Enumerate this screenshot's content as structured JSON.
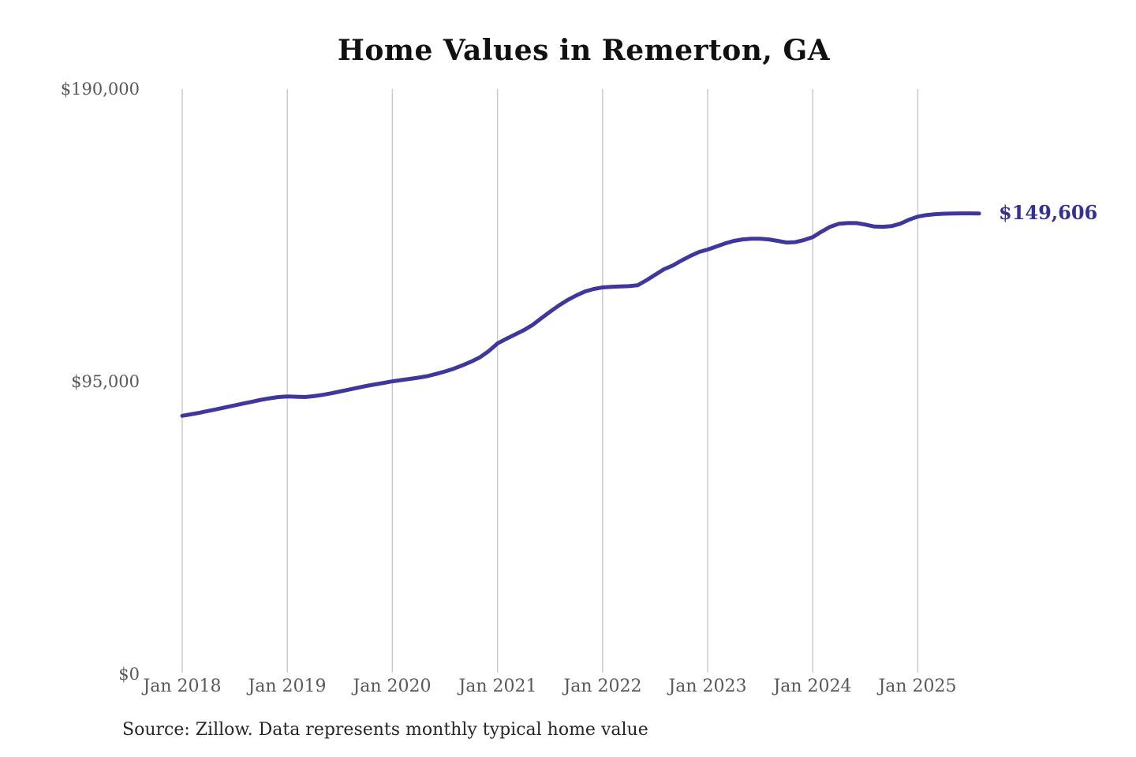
{
  "title": "Home Values in Remerton, GA",
  "source_note": "Source: Zillow. Data represents monthly typical home value",
  "end_value_label": "$149,606",
  "colors": {
    "line": "#3e389e",
    "end_label": "#34309b",
    "axis_text": "#595959",
    "grid": "#cbcbcb",
    "title_text": "#111111",
    "source_text": "#262626",
    "background": "#ffffff"
  },
  "y_axis": {
    "ticks": [
      {
        "label": "$190,000",
        "value": 190000
      },
      {
        "label": "$95,000",
        "value": 95000
      },
      {
        "label": "$0",
        "value": 0
      }
    ]
  },
  "x_axis": {
    "tick_labels": [
      "Jan 2018",
      "Jan 2019",
      "Jan 2020",
      "Jan 2021",
      "Jan 2022",
      "Jan 2023",
      "Jan 2024",
      "Jan 2025"
    ]
  },
  "chart_data": {
    "type": "line",
    "title": "Home Values in Remerton, GA",
    "xlabel": "",
    "ylabel": "",
    "ylim": [
      0,
      190000
    ],
    "y_tick_values": [
      0,
      95000,
      190000
    ],
    "grid": "vertical-lines-at-each-january",
    "legend": "none",
    "x_start_month": "2018-01",
    "x_end_month": "2025-08",
    "x_tick_months": [
      "2018-01",
      "2019-01",
      "2020-01",
      "2021-01",
      "2022-01",
      "2023-01",
      "2024-01",
      "2025-01"
    ],
    "series": [
      {
        "name": "Monthly typical home value",
        "values": [
          83900,
          84400,
          84900,
          85500,
          86100,
          86700,
          87300,
          87900,
          88500,
          89100,
          89600,
          90000,
          90200,
          90100,
          90000,
          90300,
          90700,
          91200,
          91800,
          92400,
          93000,
          93600,
          94100,
          94600,
          95100,
          95500,
          95900,
          96300,
          96800,
          97500,
          98300,
          99200,
          100300,
          101500,
          102900,
          104900,
          107400,
          108900,
          110300,
          111700,
          113400,
          115600,
          117700,
          119700,
          121500,
          123000,
          124300,
          125100,
          125600,
          125800,
          125900,
          126000,
          126300,
          127900,
          129700,
          131500,
          132700,
          134300,
          135800,
          137100,
          137900,
          138900,
          139900,
          140700,
          141200,
          141400,
          141400,
          141200,
          140700,
          140200,
          140300,
          141000,
          141900,
          143700,
          145300,
          146300,
          146500,
          146500,
          146000,
          145400,
          145300,
          145500,
          146300,
          147600,
          148600,
          149100,
          149400,
          149550,
          149600,
          149650,
          149650,
          149606
        ]
      }
    ],
    "end_annotation": {
      "text": "$149,606",
      "value": 149606
    }
  }
}
